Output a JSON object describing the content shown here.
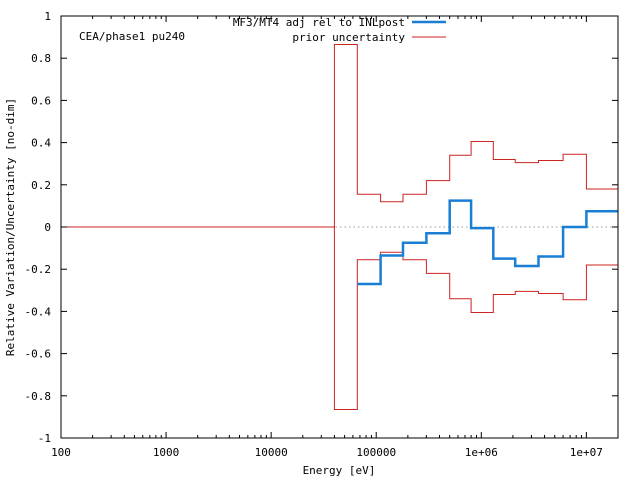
{
  "chart_data": {
    "type": "line",
    "title": "",
    "annotation": "CEA/phase1 pu240",
    "xlabel": "Energy [eV]",
    "ylabel": "Relative Variation/Uncertainty [no-dim]",
    "xscale": "log",
    "xlim": [
      100,
      20000000
    ],
    "ylim": [
      -1,
      1
    ],
    "grid": false,
    "legend_position": "top-right",
    "x_ticks": [
      {
        "value": 100,
        "label": "100"
      },
      {
        "value": 1000,
        "label": "1000"
      },
      {
        "value": 10000,
        "label": "10000"
      },
      {
        "value": 100000,
        "label": "100000"
      },
      {
        "value": 1000000,
        "label": "1e+06"
      },
      {
        "value": 10000000,
        "label": "1e+07"
      }
    ],
    "y_ticks": [
      {
        "value": 1,
        "label": "1"
      },
      {
        "value": 0.8,
        "label": "0.8"
      },
      {
        "value": 0.6,
        "label": "0.6"
      },
      {
        "value": 0.4,
        "label": "0.4"
      },
      {
        "value": 0.2,
        "label": "0.2"
      },
      {
        "value": 0,
        "label": "0"
      },
      {
        "value": -0.2,
        "label": "-0.2"
      },
      {
        "value": -0.4,
        "label": "-0.4"
      },
      {
        "value": -0.6,
        "label": "-0.6"
      },
      {
        "value": -0.8,
        "label": "-0.8"
      },
      {
        "value": -1,
        "label": "-1"
      }
    ],
    "zero_line": {
      "style": "dotted",
      "color": "#999999"
    },
    "series": [
      {
        "name": "MF3/MT4 adj rel to INLpost",
        "color": "#1a7fd4",
        "style": "step",
        "edges": [
          66000,
          110000,
          180000,
          300000,
          500000,
          800000,
          1300000,
          2100000,
          3500000,
          6000000,
          10000000,
          20000000
        ],
        "values": [
          -0.27,
          -0.135,
          -0.075,
          -0.03,
          0.125,
          -0.005,
          -0.15,
          -0.185,
          -0.14,
          0.0,
          0.075
        ]
      },
      {
        "name": "prior uncertainty",
        "color": "#cc2222",
        "style": "step",
        "mirror": true,
        "edges": [
          100,
          40000,
          66000,
          110000,
          180000,
          300000,
          500000,
          800000,
          1300000,
          2100000,
          3500000,
          6000000,
          10000000,
          20000000
        ],
        "values": [
          0.0,
          0.865,
          0.155,
          0.12,
          0.155,
          0.22,
          0.34,
          0.405,
          0.32,
          0.305,
          0.315,
          0.345,
          0.18
        ]
      }
    ]
  }
}
